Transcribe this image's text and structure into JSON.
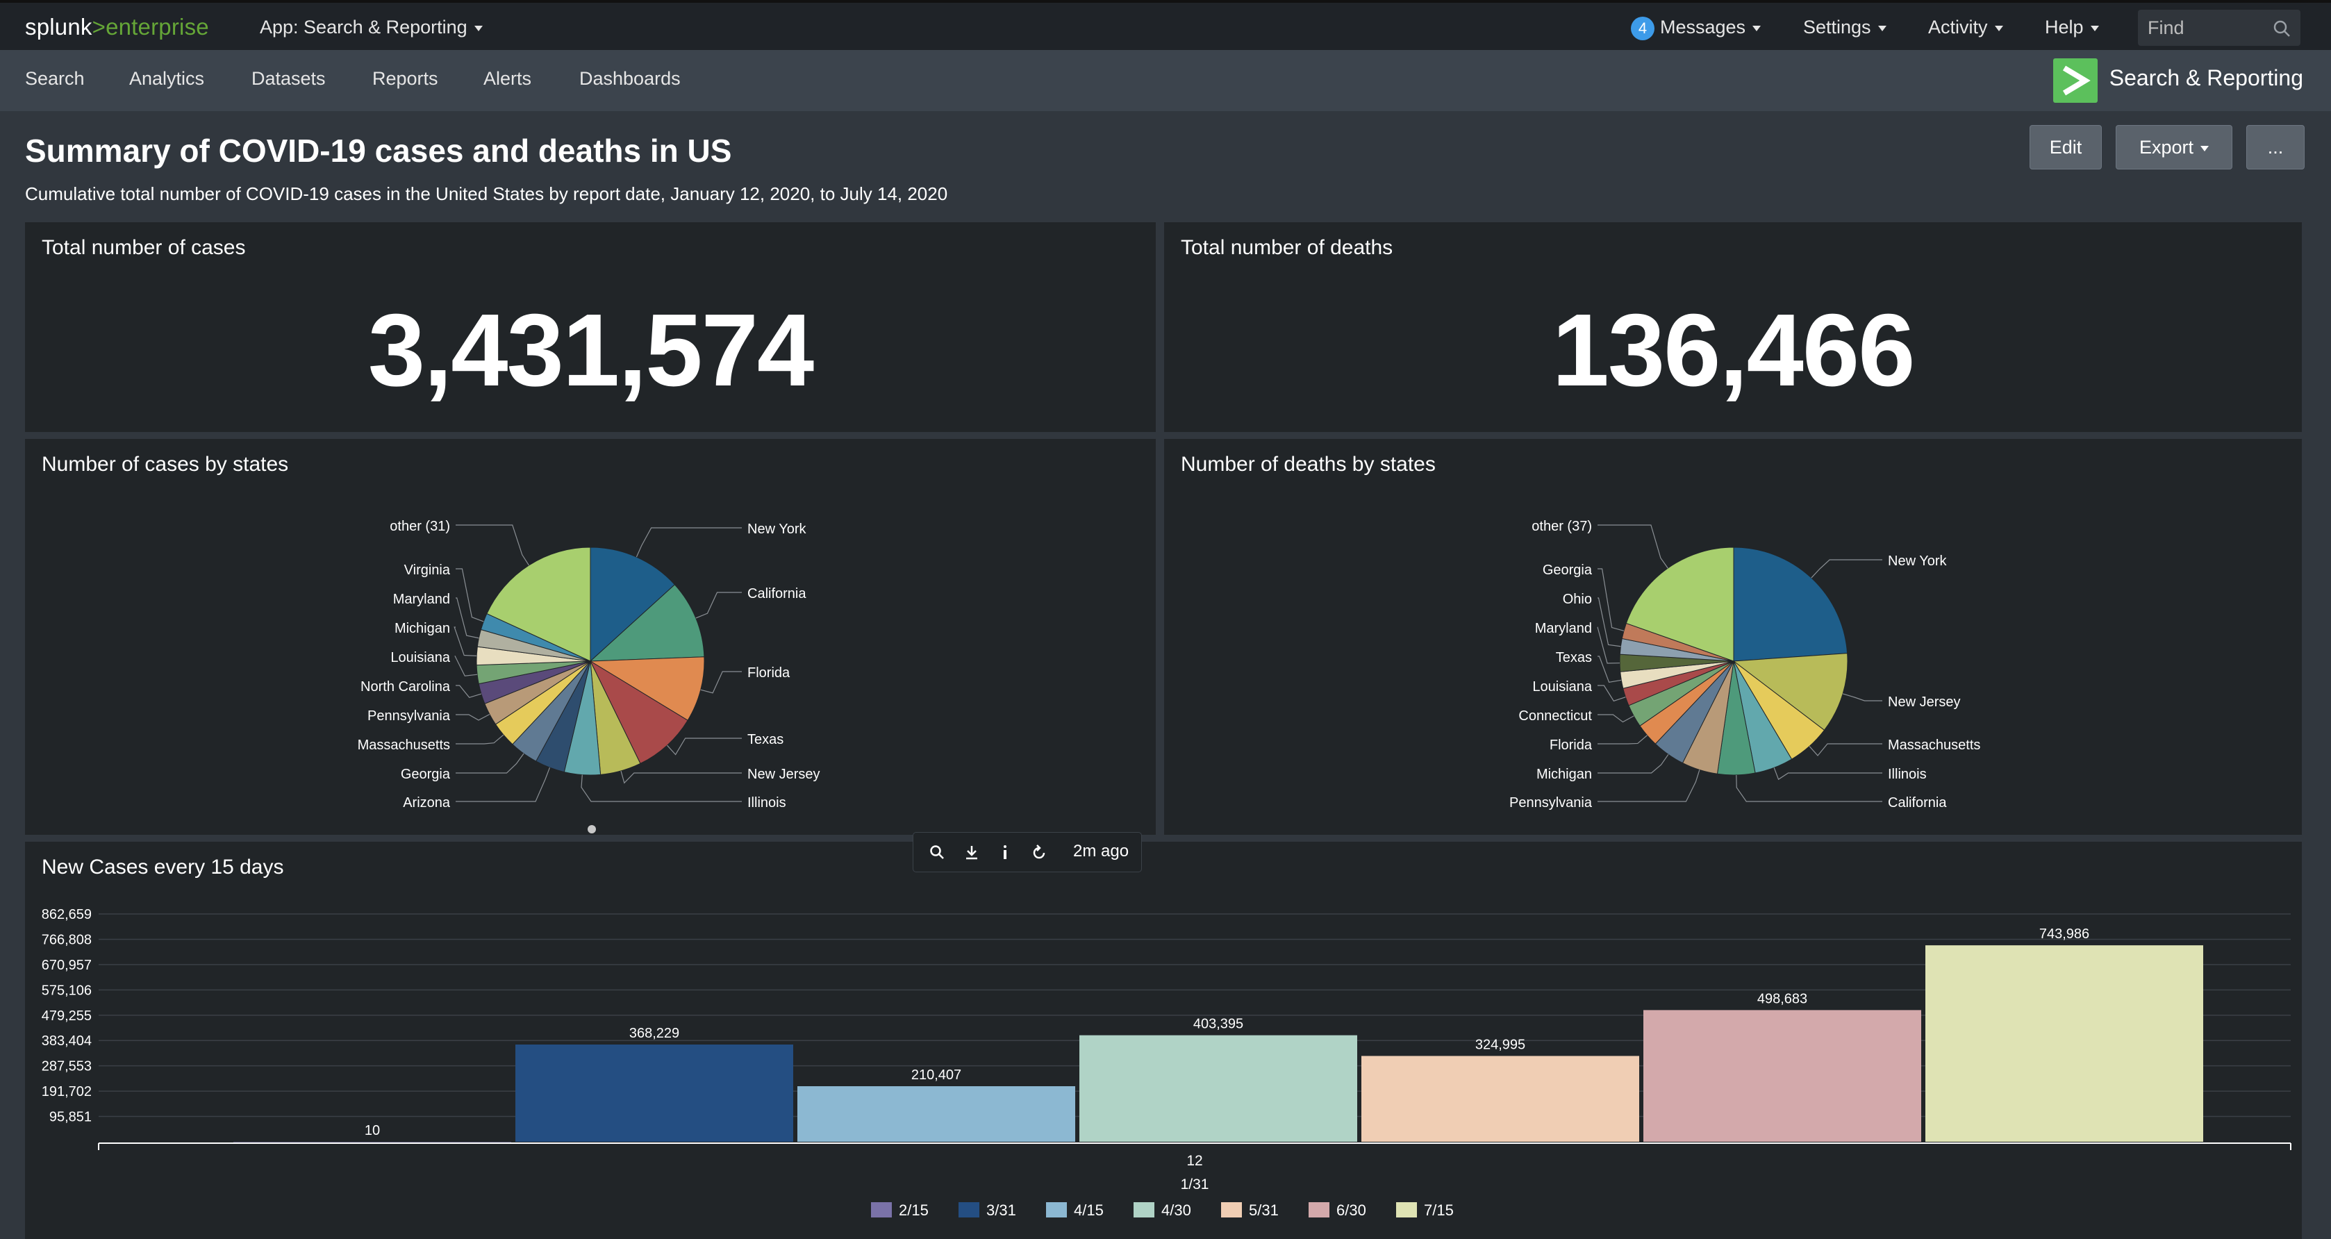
{
  "topbar": {
    "logo_left": "splunk",
    "logo_gt": ">",
    "logo_right": "enterprise",
    "app_menu": "App: Search & Reporting",
    "messages_count": "4",
    "messages": "Messages",
    "settings": "Settings",
    "activity": "Activity",
    "help": "Help",
    "find_placeholder": "Find"
  },
  "appbar": {
    "items": [
      "Search",
      "Analytics",
      "Datasets",
      "Reports",
      "Alerts",
      "Dashboards"
    ],
    "app_title": "Search & Reporting"
  },
  "dashboard": {
    "title": "Summary of COVID-19 cases and deaths in US",
    "description": "Cumulative total number of COVID-19 cases in the United States by report date, January 12, 2020, to July 14, 2020",
    "edit": "Edit",
    "export": "Export",
    "more": "..."
  },
  "panels": {
    "cases": {
      "title": "Total number of cases",
      "value": "3,431,574"
    },
    "deaths": {
      "title": "Total number of deaths",
      "value": "136,466"
    },
    "cases_pie_title": "Number of cases by states",
    "deaths_pie_title": "Number of deaths by states",
    "bar_title": "New Cases every 15 days"
  },
  "toolbar": {
    "ago": "2m ago"
  },
  "colors": {
    "accent_green": "#65a637",
    "badge_blue": "#3d9be9",
    "panel_bg": "#212528",
    "page_bg": "#31373e"
  },
  "chart_data": [
    {
      "type": "pie",
      "title": "Number of cases by states",
      "labels": [
        "New York",
        "California",
        "Florida",
        "Texas",
        "New Jersey",
        "Illinois",
        "Arizona",
        "Georgia",
        "Massachusetts",
        "Pennsylvania",
        "North Carolina",
        "Louisiana",
        "Michigan",
        "Maryland",
        "Virginia",
        "other (31)"
      ],
      "values": [
        402000,
        337000,
        282000,
        275000,
        176000,
        155000,
        128000,
        123000,
        111000,
        99000,
        88000,
        80000,
        78000,
        74000,
        72000,
        550000
      ],
      "colors": [
        "#1e5e8a",
        "#4e9a7b",
        "#e08a50",
        "#a94a4a",
        "#b8bb59",
        "#62a8ad",
        "#2e4d6e",
        "#607a93",
        "#e5cb5b",
        "#b89a78",
        "#5a4a7a",
        "#74a474",
        "#e8dec0",
        "#b0b0a0",
        "#3f8aad",
        "#a8cf6e"
      ],
      "extra_small_slices": [
        "#c9a0d0",
        "#e07070",
        "#8ab0d0",
        "#d89b5b",
        "#9cc",
        "#e89ac0",
        "#7a7",
        "#cfa"
      ]
    },
    {
      "type": "pie",
      "title": "Number of deaths by states",
      "labels": [
        "New York",
        "New Jersey",
        "Massachusetts",
        "Illinois",
        "California",
        "Pennsylvania",
        "Michigan",
        "Florida",
        "Connecticut",
        "Louisiana",
        "Texas",
        "Maryland",
        "Ohio",
        "Georgia",
        "other (37)"
      ],
      "values": [
        32300,
        15500,
        8300,
        7400,
        7200,
        6900,
        6300,
        4500,
        4400,
        3400,
        3200,
        3300,
        3000,
        3000,
        26500
      ],
      "colors": [
        "#1e5e8a",
        "#b8bb59",
        "#e5cb5b",
        "#62a8ad",
        "#4e9a7b",
        "#b89a78",
        "#607a93",
        "#e08a50",
        "#74a474",
        "#a94a4a",
        "#e8dec0",
        "#55663a",
        "#8da0b0",
        "#c07a5a",
        "#a8cf6e"
      ],
      "extra_small_slices": [
        "#c9a0d0",
        "#e07070",
        "#3f8aad",
        "#e89ac0",
        "#cfa"
      ]
    },
    {
      "type": "bar",
      "title": "New Cases every 15 days",
      "x_tick": "12",
      "x_label": "1/31",
      "categories": [
        "2/15",
        "3/31",
        "4/15",
        "4/30",
        "5/31",
        "6/30",
        "7/15"
      ],
      "values": [
        10,
        368229,
        210407,
        403395,
        324995,
        498683,
        743986
      ],
      "value_labels": [
        "10",
        "368,229",
        "210,407",
        "403,395",
        "324,995",
        "498,683",
        "743,986"
      ],
      "colors": [
        "#7a72a8",
        "#244e82",
        "#8cb8d2",
        "#b0d3c6",
        "#f0ceb4",
        "#d3a9ab",
        "#dfe3b4"
      ],
      "y_ticks": [
        "862,659",
        "766,808",
        "670,957",
        "575,106",
        "479,255",
        "383,404",
        "287,553",
        "191,702",
        "95,851"
      ],
      "ylim": [
        0,
        862659
      ]
    }
  ]
}
